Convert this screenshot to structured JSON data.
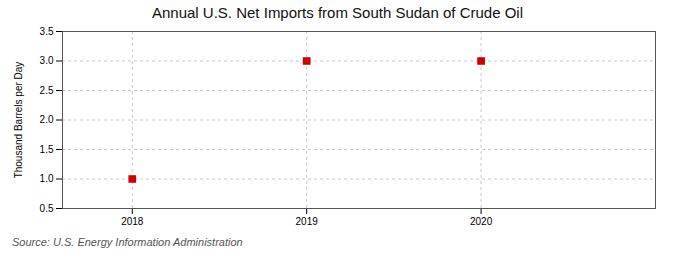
{
  "chart_data": {
    "type": "scatter",
    "title": "Annual U.S. Net Imports from South Sudan of Crude Oil",
    "ylabel": "Thousand Barrels per Day",
    "source": "Source: U.S. Energy Information Administration",
    "x": [
      2018,
      2019,
      2020
    ],
    "values": [
      1.0,
      3.0,
      3.0
    ],
    "color": "#cc0000",
    "marker": "square",
    "xlim": [
      2017.6,
      2021.0
    ],
    "ylim": [
      0.5,
      3.5
    ],
    "xticks": [
      2018,
      2019,
      2020
    ],
    "yticks": [
      0.5,
      {
        "value": 1.0,
        "label": "1.0"
      },
      1.5,
      {
        "value": 2.0,
        "label": "2.0"
      },
      2.5,
      {
        "value": 3.0,
        "label": "3.0"
      },
      3.5
    ],
    "grid": true
  }
}
